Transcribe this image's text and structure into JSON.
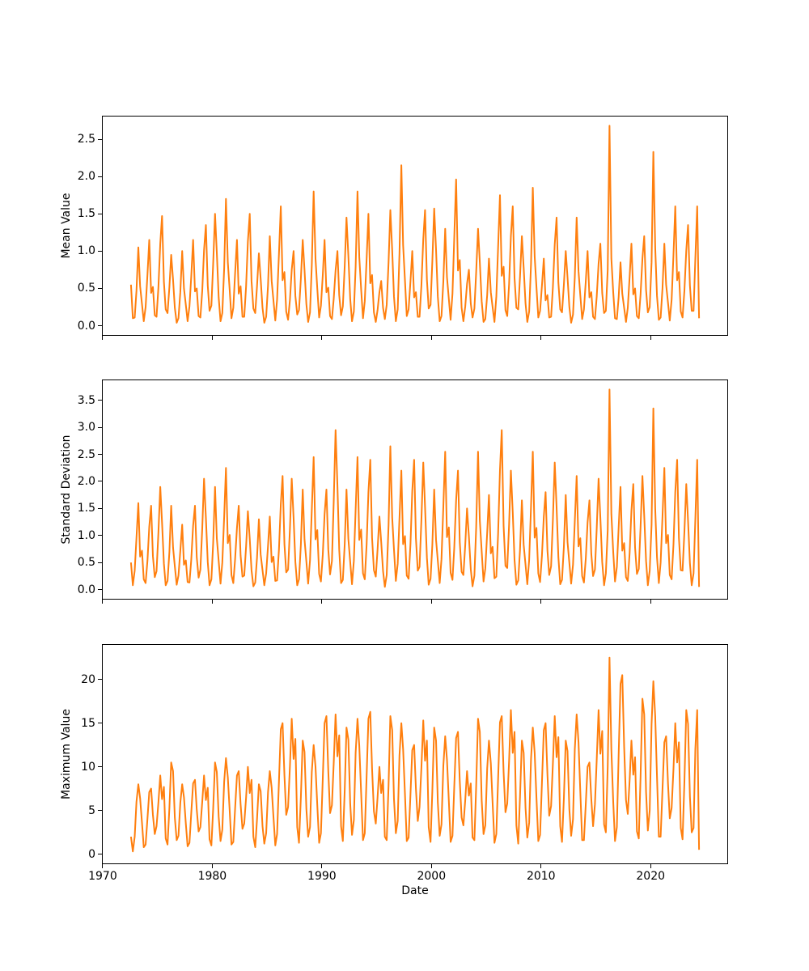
{
  "figure": {
    "background_color": "#ffffff",
    "line_color": "#ff7f0e",
    "spine_color": "#000000",
    "xlabel": "Date",
    "xlim": [
      1969.93,
      2027.07
    ],
    "x_tick_values": [
      1970,
      1980,
      1990,
      2000,
      2010,
      2020
    ],
    "x_tick_labels": [
      "1970",
      "1980",
      "1990",
      "2000",
      "2010",
      "2020"
    ],
    "grid": false,
    "legend": false
  },
  "chart_data": [
    {
      "type": "line",
      "name": "mean-value-series",
      "ylabel": "Mean Value",
      "ylim": [
        -0.135,
        2.815
      ],
      "ytick_values": [
        0.0,
        0.5,
        1.0,
        1.5,
        2.0,
        2.5
      ],
      "ytick_labels": [
        "0.0",
        "0.5",
        "1.0",
        "1.5",
        "2.0",
        "2.5"
      ],
      "x_start": 1972.5833,
      "x_step": 0.1666667,
      "values": [
        0.55,
        0.1,
        0.11,
        0.47,
        1.05,
        0.53,
        0.29,
        0.06,
        0.25,
        0.69,
        1.15,
        0.44,
        0.52,
        0.14,
        0.12,
        0.51,
        1.1,
        1.47,
        0.59,
        0.22,
        0.17,
        0.52,
        0.95,
        0.62,
        0.24,
        0.04,
        0.1,
        0.45,
        1.0,
        0.5,
        0.28,
        0.06,
        0.26,
        0.66,
        1.15,
        0.46,
        0.5,
        0.13,
        0.11,
        0.47,
        1.01,
        1.35,
        0.54,
        0.2,
        0.27,
        0.83,
        1.5,
        0.98,
        0.38,
        0.06,
        0.17,
        0.77,
        1.7,
        0.85,
        0.48,
        0.1,
        0.24,
        0.7,
        1.15,
        0.43,
        0.53,
        0.12,
        0.12,
        0.53,
        1.13,
        1.5,
        0.6,
        0.23,
        0.17,
        0.53,
        0.97,
        0.63,
        0.24,
        0.04,
        0.12,
        0.54,
        1.2,
        0.6,
        0.34,
        0.07,
        0.35,
        0.96,
        1.6,
        0.61,
        0.72,
        0.19,
        0.08,
        0.35,
        0.75,
        1.0,
        0.4,
        0.15,
        0.21,
        0.63,
        1.15,
        0.75,
        0.29,
        0.05,
        0.18,
        0.81,
        1.8,
        0.9,
        0.5,
        0.11,
        0.27,
        0.68,
        1.15,
        0.45,
        0.51,
        0.13,
        0.09,
        0.36,
        0.74,
        1.0,
        0.41,
        0.14,
        0.26,
        0.8,
        1.45,
        0.94,
        0.36,
        0.06,
        0.19,
        0.79,
        1.8,
        0.92,
        0.49,
        0.1,
        0.33,
        0.9,
        1.5,
        0.57,
        0.68,
        0.18,
        0.05,
        0.21,
        0.45,
        0.6,
        0.24,
        0.09,
        0.28,
        0.85,
        1.55,
        1.01,
        0.39,
        0.06,
        0.22,
        0.97,
        2.15,
        1.08,
        0.6,
        0.13,
        0.22,
        0.6,
        1.0,
        0.38,
        0.45,
        0.12,
        0.12,
        0.54,
        1.16,
        1.55,
        0.62,
        0.23,
        0.28,
        0.86,
        1.57,
        1.02,
        0.39,
        0.06,
        0.13,
        0.59,
        1.3,
        0.65,
        0.36,
        0.08,
        0.43,
        1.18,
        1.96,
        0.74,
        0.88,
        0.24,
        0.06,
        0.26,
        0.56,
        0.75,
        0.3,
        0.11,
        0.23,
        0.72,
        1.3,
        0.85,
        0.33,
        0.05,
        0.09,
        0.41,
        0.9,
        0.45,
        0.25,
        0.05,
        0.39,
        1.05,
        1.75,
        0.67,
        0.79,
        0.21,
        0.13,
        0.56,
        1.2,
        1.6,
        0.64,
        0.24,
        0.22,
        0.66,
        1.2,
        0.78,
        0.3,
        0.05,
        0.19,
        0.83,
        1.85,
        0.93,
        0.52,
        0.11,
        0.2,
        0.54,
        0.9,
        0.34,
        0.41,
        0.11,
        0.12,
        0.51,
        1.09,
        1.45,
        0.58,
        0.22,
        0.18,
        0.55,
        1.0,
        0.65,
        0.25,
        0.04,
        0.15,
        0.65,
        1.45,
        0.73,
        0.41,
        0.09,
        0.22,
        0.6,
        1.0,
        0.38,
        0.45,
        0.12,
        0.09,
        0.39,
        0.83,
        1.1,
        0.44,
        0.17,
        0.2,
        0.75,
        2.68,
        0.9,
        0.45,
        0.1,
        0.09,
        0.38,
        0.85,
        0.43,
        0.24,
        0.05,
        0.24,
        0.66,
        1.1,
        0.42,
        0.5,
        0.13,
        0.1,
        0.42,
        0.9,
        1.2,
        0.48,
        0.18,
        0.25,
        0.85,
        2.33,
        1.05,
        0.4,
        0.08,
        0.11,
        0.5,
        1.1,
        0.55,
        0.31,
        0.07,
        0.35,
        0.96,
        1.6,
        0.61,
        0.72,
        0.19,
        0.11,
        0.47,
        1.01,
        1.35,
        0.54,
        0.2,
        0.2,
        0.9,
        1.6,
        0.1
      ]
    },
    {
      "type": "line",
      "name": "standard-deviation-series",
      "ylabel": "Standard Deviation",
      "ylim": [
        -0.185,
        3.885
      ],
      "ytick_values": [
        0.0,
        0.5,
        1.0,
        1.5,
        2.0,
        2.5,
        3.0,
        3.5
      ],
      "ytick_labels": [
        "0.0",
        "0.5",
        "1.0",
        "1.5",
        "2.0",
        "2.5",
        "3.0",
        "3.5"
      ],
      "x_start": 1972.5833,
      "x_step": 0.1666667,
      "values": [
        0.5,
        0.08,
        0.35,
        0.96,
        1.6,
        0.61,
        0.72,
        0.19,
        0.12,
        0.54,
        1.16,
        1.55,
        0.62,
        0.23,
        0.34,
        1.05,
        1.9,
        1.24,
        0.48,
        0.08,
        0.16,
        0.7,
        1.55,
        0.78,
        0.43,
        0.09,
        0.26,
        0.72,
        1.2,
        0.46,
        0.54,
        0.14,
        0.13,
        0.55,
        1.18,
        1.55,
        0.6,
        0.22,
        0.37,
        1.13,
        2.05,
        1.33,
        0.51,
        0.08,
        0.19,
        0.86,
        1.9,
        0.95,
        0.53,
        0.11,
        0.5,
        1.35,
        2.25,
        0.86,
        1.01,
        0.27,
        0.12,
        0.56,
        1.14,
        1.55,
        0.63,
        0.24,
        0.26,
        0.8,
        1.45,
        0.94,
        0.36,
        0.06,
        0.13,
        0.59,
        1.3,
        0.65,
        0.36,
        0.08,
        0.3,
        0.81,
        1.35,
        0.51,
        0.61,
        0.16,
        0.17,
        0.74,
        1.58,
        2.1,
        0.84,
        0.32,
        0.37,
        1.13,
        2.05,
        1.33,
        0.51,
        0.08,
        0.19,
        0.83,
        1.85,
        0.93,
        0.52,
        0.11,
        0.54,
        1.47,
        2.45,
        0.93,
        1.1,
        0.29,
        0.15,
        0.65,
        1.39,
        1.85,
        0.74,
        0.28,
        0.53,
        1.62,
        2.95,
        1.92,
        0.74,
        0.12,
        0.18,
        0.84,
        1.85,
        0.94,
        0.51,
        0.1,
        0.53,
        1.48,
        2.45,
        0.92,
        1.11,
        0.3,
        0.19,
        0.84,
        1.8,
        2.4,
        0.96,
        0.36,
        0.24,
        0.74,
        1.35,
        0.88,
        0.34,
        0.05,
        0.27,
        1.19,
        2.65,
        1.33,
        0.74,
        0.16,
        0.48,
        1.32,
        2.2,
        0.84,
        0.99,
        0.26,
        0.2,
        0.85,
        1.82,
        2.4,
        0.95,
        0.35,
        0.42,
        1.29,
        2.35,
        1.53,
        0.59,
        0.09,
        0.2,
        0.82,
        1.85,
        0.92,
        0.53,
        0.12,
        0.56,
        1.53,
        2.55,
        0.97,
        1.15,
        0.31,
        0.18,
        0.77,
        1.65,
        2.2,
        0.88,
        0.33,
        0.27,
        0.83,
        1.5,
        0.98,
        0.38,
        0.06,
        0.26,
        1.15,
        2.55,
        1.28,
        0.71,
        0.15,
        0.39,
        1.05,
        1.75,
        0.67,
        0.79,
        0.21,
        0.24,
        1.03,
        2.21,
        2.95,
        1.18,
        0.44,
        0.4,
        1.21,
        2.2,
        1.43,
        0.55,
        0.09,
        0.17,
        0.74,
        1.65,
        0.83,
        0.46,
        0.1,
        0.55,
        1.54,
        2.55,
        0.96,
        1.14,
        0.3,
        0.14,
        0.63,
        1.35,
        1.8,
        0.72,
        0.27,
        0.43,
        1.28,
        2.35,
        1.52,
        0.6,
        0.1,
        0.18,
        0.79,
        1.75,
        0.88,
        0.49,
        0.11,
        0.46,
        1.26,
        2.1,
        0.8,
        0.95,
        0.25,
        0.13,
        0.58,
        1.24,
        1.65,
        0.66,
        0.25,
        0.37,
        1.13,
        2.05,
        1.33,
        0.51,
        0.08,
        0.3,
        1.1,
        3.7,
        1.4,
        0.7,
        0.15,
        0.42,
        1.14,
        1.9,
        0.72,
        0.86,
        0.23,
        0.16,
        0.68,
        1.46,
        1.95,
        0.78,
        0.29,
        0.38,
        1.16,
        2.1,
        1.37,
        0.53,
        0.08,
        0.35,
        1.2,
        3.35,
        1.5,
        0.6,
        0.12,
        0.5,
        1.35,
        2.25,
        0.86,
        1.01,
        0.27,
        0.19,
        0.84,
        1.8,
        2.4,
        0.96,
        0.36,
        0.35,
        1.07,
        1.95,
        1.27,
        0.49,
        0.08,
        0.3,
        1.3,
        2.4,
        0.05
      ]
    },
    {
      "type": "line",
      "name": "maximum-value-series",
      "ylabel": "Maximum Value",
      "ylim": [
        -1.15,
        24.05
      ],
      "ytick_values": [
        0,
        5,
        10,
        15,
        20
      ],
      "ytick_labels": [
        "0",
        "5",
        "10",
        "15",
        "20"
      ],
      "x_start": 1972.5833,
      "x_step": 0.1666667,
      "values": [
        2.0,
        0.3,
        2.0,
        6.0,
        8.0,
        6.4,
        3.6,
        0.8,
        1.1,
        4.1,
        7.1,
        7.5,
        4.5,
        2.3,
        3.2,
        5.9,
        9.0,
        6.3,
        7.7,
        1.8,
        1.1,
        5.3,
        10.5,
        9.5,
        4.2,
        1.6,
        2.1,
        5.9,
        8.0,
        6.5,
        3.5,
        0.9,
        1.3,
        4.7,
        8.1,
        8.5,
        5.1,
        2.6,
        3.1,
        6.0,
        9.0,
        6.2,
        7.6,
        1.7,
        1.0,
        5.2,
        10.5,
        9.4,
        4.3,
        1.5,
        2.8,
        8.3,
        11.0,
        8.8,
        5.0,
        1.1,
        1.4,
        5.2,
        9.0,
        9.5,
        5.7,
        2.9,
        3.5,
        6.5,
        10.0,
        7.0,
        8.5,
        2.0,
        0.8,
        4.0,
        8.0,
        7.2,
        3.2,
        1.2,
        2.4,
        7.1,
        9.5,
        7.6,
        4.3,
        1.0,
        2.3,
        8.3,
        14.3,
        15.0,
        9.0,
        4.5,
        5.4,
        10.1,
        15.5,
        10.9,
        13.2,
        3.1,
        1.3,
        6.5,
        13.0,
        11.7,
        5.2,
        2.0,
        3.1,
        9.4,
        12.5,
        10.0,
        5.6,
        1.3,
        2.4,
        8.7,
        15.0,
        15.8,
        9.5,
        4.7,
        5.6,
        10.4,
        16.0,
        11.2,
        13.6,
        3.2,
        1.5,
        7.3,
        14.5,
        13.1,
        5.8,
        2.2,
        3.9,
        11.6,
        15.5,
        12.4,
        7.0,
        1.6,
        2.4,
        9.0,
        15.5,
        16.3,
        9.8,
        4.9,
        3.5,
        6.5,
        10.0,
        7.0,
        8.5,
        2.0,
        1.6,
        7.9,
        15.8,
        14.2,
        6.3,
        2.4,
        3.8,
        11.3,
        15.0,
        12.0,
        6.8,
        1.5,
        1.9,
        6.9,
        11.9,
        12.5,
        7.5,
        3.8,
        5.4,
        9.9,
        15.3,
        10.7,
        13.0,
        3.1,
        1.4,
        7.2,
        14.5,
        13.0,
        5.9,
        2.1,
        3.4,
        10.1,
        13.5,
        10.8,
        6.1,
        1.4,
        2.1,
        7.7,
        13.3,
        14.0,
        8.4,
        4.2,
        3.3,
        6.2,
        9.5,
        6.7,
        8.1,
        1.9,
        1.6,
        7.8,
        15.5,
        14.0,
        6.2,
        2.3,
        3.3,
        9.8,
        13.0,
        10.4,
        5.9,
        1.3,
        2.3,
        8.6,
        15.1,
        15.8,
        9.4,
        4.8,
        5.8,
        10.7,
        16.5,
        11.6,
        14.0,
        3.3,
        1.2,
        6.6,
        13.0,
        11.6,
        5.3,
        1.9,
        3.6,
        10.9,
        14.5,
        11.6,
        6.5,
        1.5,
        2.2,
        8.2,
        14.2,
        15.0,
        9.1,
        4.4,
        5.5,
        10.3,
        15.8,
        11.1,
        13.4,
        3.2,
        1.4,
        6.4,
        13.0,
        11.8,
        5.1,
        2.1,
        4.0,
        12.0,
        16.0,
        12.8,
        7.2,
        1.6,
        1.6,
        5.8,
        10.0,
        10.5,
        6.3,
        3.2,
        5.7,
        10.8,
        16.5,
        11.5,
        14.1,
        3.4,
        2.5,
        10.0,
        22.5,
        12.0,
        6.0,
        1.5,
        3.1,
        11.3,
        19.5,
        20.5,
        12.3,
        6.2,
        4.6,
        8.5,
        13.0,
        9.1,
        11.1,
        2.6,
        1.8,
        8.9,
        17.8,
        16.0,
        7.1,
        2.7,
        5.0,
        14.9,
        19.8,
        15.8,
        8.9,
        2.0,
        2.0,
        7.4,
        12.8,
        13.5,
        8.1,
        4.1,
        5.3,
        9.8,
        15.0,
        10.5,
        12.8,
        3.0,
        1.7,
        8.3,
        16.5,
        14.9,
        6.6,
        2.5,
        3.0,
        12.0,
        16.5,
        0.5
      ]
    }
  ]
}
